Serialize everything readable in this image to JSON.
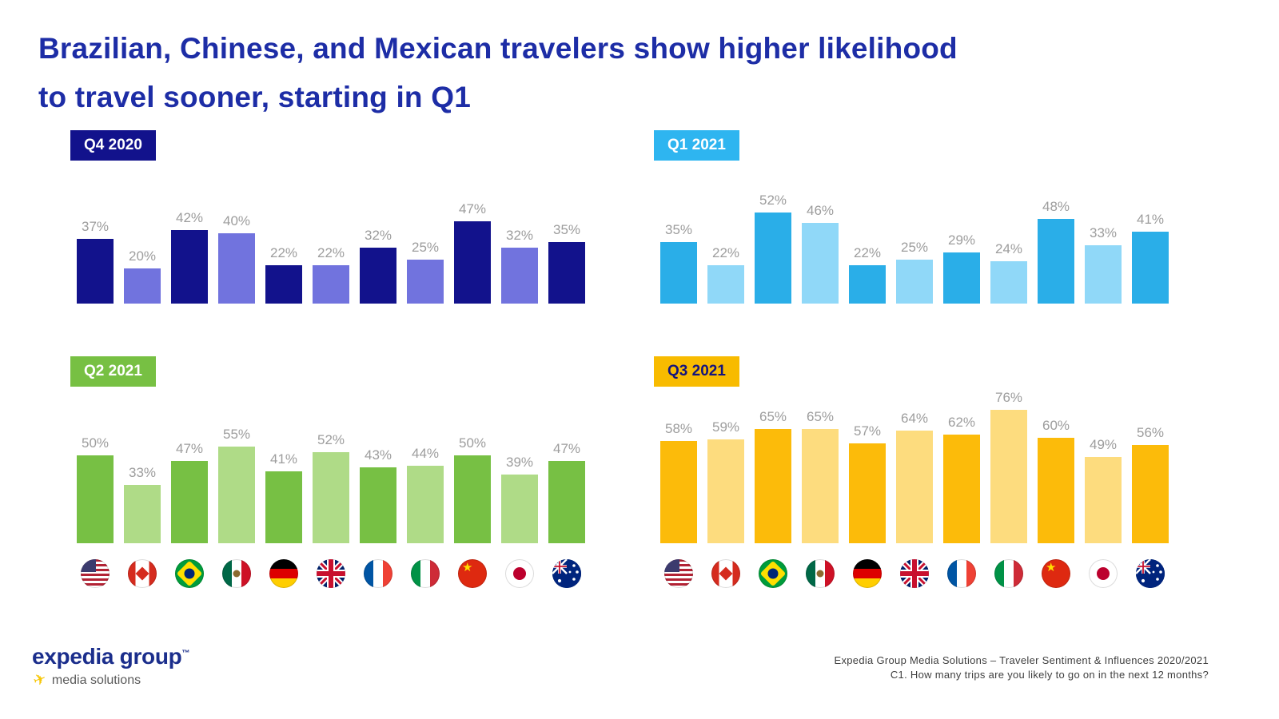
{
  "title": {
    "line1": "Brazilian, Chinese, and Mexican travelers show higher likelihood",
    "line2": "to travel sooner, starting in Q1"
  },
  "countries": [
    {
      "name": "United States",
      "code": "us"
    },
    {
      "name": "Canada",
      "code": "ca"
    },
    {
      "name": "Brazil",
      "code": "br"
    },
    {
      "name": "Mexico",
      "code": "mx"
    },
    {
      "name": "Germany",
      "code": "de"
    },
    {
      "name": "United Kingdom",
      "code": "gb"
    },
    {
      "name": "France",
      "code": "fr"
    },
    {
      "name": "Italy",
      "code": "it"
    },
    {
      "name": "China",
      "code": "cn"
    },
    {
      "name": "Japan",
      "code": "jp"
    },
    {
      "name": "Australia",
      "code": "au"
    }
  ],
  "chart_data": [
    {
      "type": "bar",
      "title": "Q4 2020",
      "categories": [
        "United States",
        "Canada",
        "Brazil",
        "Mexico",
        "Germany",
        "United Kingdom",
        "France",
        "Italy",
        "China",
        "Japan",
        "Australia"
      ],
      "values": [
        37,
        20,
        42,
        40,
        22,
        22,
        32,
        25,
        47,
        32,
        35
      ],
      "unit": "%",
      "ylim": [
        0,
        80
      ],
      "legend": "none",
      "grid": false,
      "label_bg": "#12128C",
      "label_color": "#FFFFFF",
      "bar_colors": [
        "#12128C",
        "#7173DE"
      ],
      "value_label_color": "#9D9D9D"
    },
    {
      "type": "bar",
      "title": "Q1 2021",
      "categories": [
        "United States",
        "Canada",
        "Brazil",
        "Mexico",
        "Germany",
        "United Kingdom",
        "France",
        "Italy",
        "China",
        "Japan",
        "Australia"
      ],
      "values": [
        35,
        22,
        52,
        46,
        22,
        25,
        29,
        24,
        48,
        33,
        41
      ],
      "unit": "%",
      "ylim": [
        0,
        80
      ],
      "legend": "none",
      "grid": false,
      "label_bg": "#2EB5F0",
      "label_color": "#FFFFFF",
      "bar_colors": [
        "#2AAEE8",
        "#90D8F8"
      ],
      "value_label_color": "#9D9D9D"
    },
    {
      "type": "bar",
      "title": "Q2 2021",
      "categories": [
        "United States",
        "Canada",
        "Brazil",
        "Mexico",
        "Germany",
        "United Kingdom",
        "France",
        "Italy",
        "China",
        "Japan",
        "Australia"
      ],
      "values": [
        50,
        33,
        47,
        55,
        41,
        52,
        43,
        44,
        50,
        39,
        47
      ],
      "unit": "%",
      "ylim": [
        0,
        80
      ],
      "legend": "none",
      "grid": false,
      "label_bg": "#77C043",
      "label_color": "#FFFFFF",
      "bar_colors": [
        "#77C044",
        "#AFDB87"
      ],
      "value_label_color": "#9D9D9D"
    },
    {
      "type": "bar",
      "title": "Q3 2021",
      "categories": [
        "United States",
        "Canada",
        "Brazil",
        "Mexico",
        "Germany",
        "United Kingdom",
        "France",
        "Italy",
        "China",
        "Japan",
        "Australia"
      ],
      "values": [
        58,
        59,
        65,
        65,
        57,
        64,
        62,
        76,
        60,
        49,
        56
      ],
      "unit": "%",
      "ylim": [
        0,
        80
      ],
      "legend": "none",
      "grid": false,
      "label_bg": "#F8BB00",
      "label_color": "#13137E",
      "bar_colors": [
        "#FCBB0A",
        "#FDDC7E"
      ],
      "value_label_color": "#9D9D9D"
    }
  ],
  "footer": {
    "logo_line1": "expedia group",
    "logo_tm": "™",
    "logo_line2": "media solutions",
    "source_line1": "Expedia Group Media Solutions – Traveler Sentiment & Influences 2020/2021",
    "source_line2": "C1. How many trips are you likely to go on in the next 12 months?"
  }
}
